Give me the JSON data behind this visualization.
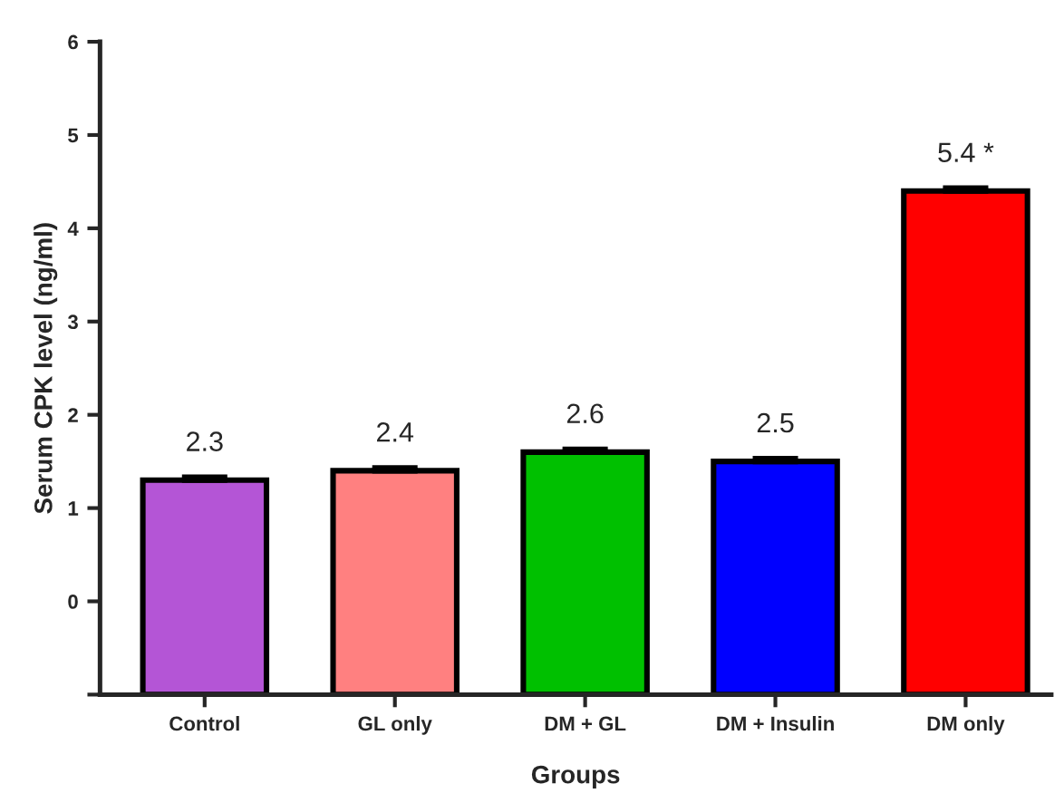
{
  "chart_data": {
    "type": "bar",
    "xlabel": "Groups",
    "ylabel": "Serum CPK level (ng/ml)",
    "categories": [
      "Control",
      "GL only",
      "DM + GL",
      "DM + Insulin",
      "DM only"
    ],
    "values": [
      2.3,
      2.4,
      2.6,
      2.5,
      5.4
    ],
    "errors": [
      0.03,
      0.03,
      0.03,
      0.03,
      0.03
    ],
    "colors": [
      "#b455d6",
      "#ff8080",
      "#00c000",
      "#0000ff",
      "#ff0000"
    ],
    "value_labels": [
      "2.3",
      "2.4",
      "2.6",
      "2.5",
      "5.4 *"
    ],
    "base": [
      -1,
      -1,
      -1,
      -1,
      -1
    ],
    "ylim": [
      -1,
      6
    ],
    "yticks": [
      {
        "value": -1,
        "label": null
      },
      0,
      1,
      2,
      3,
      4,
      5,
      6
    ],
    "grid": false
  }
}
